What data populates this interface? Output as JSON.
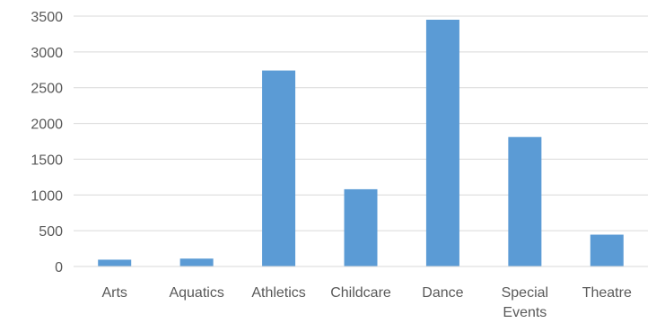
{
  "chart_data": {
    "type": "bar",
    "title": "",
    "xlabel": "",
    "ylabel": "",
    "categories": [
      [
        "Arts"
      ],
      [
        "Aquatics"
      ],
      [
        "Athletics"
      ],
      [
        "Childcare"
      ],
      [
        "Dance"
      ],
      [
        "Special",
        "Events"
      ],
      [
        "Theatre"
      ]
    ],
    "values": [
      95,
      110,
      2740,
      1080,
      3450,
      1810,
      445
    ],
    "ylim": [
      0,
      3500
    ],
    "yticks": [
      0,
      500,
      1000,
      1500,
      2000,
      2500,
      3000,
      3500
    ],
    "grid": true,
    "legend": "none",
    "bar_color": "#5b9bd5"
  }
}
